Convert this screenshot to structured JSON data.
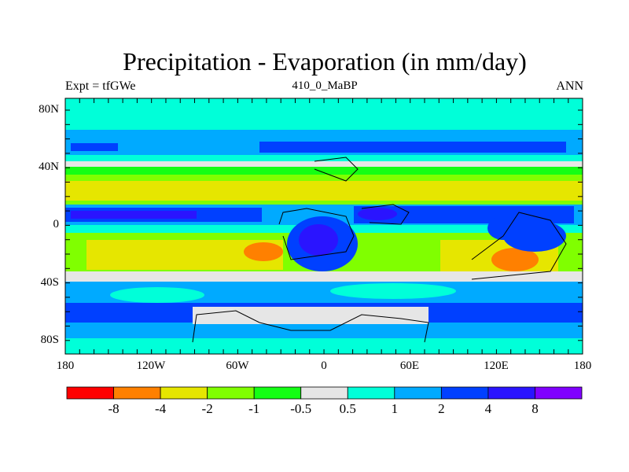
{
  "title": "Precipitation - Evaporation (in mm/day)",
  "left_string": "Expt = tfGWe",
  "center_string": "410_0_MaBP",
  "right_string": "ANN",
  "y_ticks": [
    "80N",
    "40N",
    "0",
    "40S",
    "80S"
  ],
  "x_ticks": [
    "180",
    "120W",
    "60W",
    "0",
    "60E",
    "120E",
    "180"
  ],
  "colorbar": {
    "labels": [
      "-8",
      "-4",
      "-2",
      "-1",
      "-0.5",
      "0.5",
      "1",
      "2",
      "4",
      "8"
    ],
    "colors": [
      "#ff0000",
      "#ff8000",
      "#e6e600",
      "#80ff00",
      "#14ff14",
      "#e6e6e6",
      "#00ffd9",
      "#00aaff",
      "#0040ff",
      "#2a14ff",
      "#8000ff"
    ]
  }
}
